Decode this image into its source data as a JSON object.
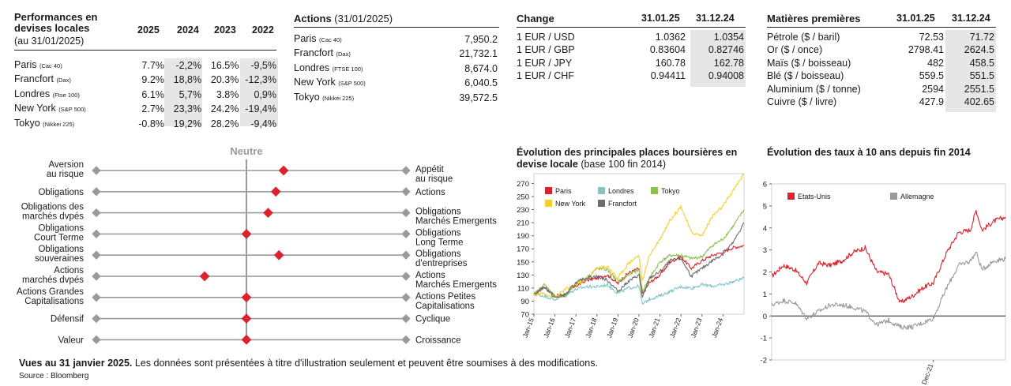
{
  "performance": {
    "title": "Performances en devises locales",
    "subtitle": "(au 31/01/2025)",
    "years": [
      "2025",
      "2024",
      "2023",
      "2022"
    ],
    "rows": [
      {
        "name": "Paris",
        "sub": "(Cac 40)",
        "v": [
          "7.7%",
          "-2,2%",
          "16.5%",
          "-9,5%"
        ]
      },
      {
        "name": "Francfort",
        "sub": "(Dax)",
        "v": [
          "9.2%",
          "18,8%",
          "20.3%",
          "-12,3%"
        ]
      },
      {
        "name": "Londres",
        "sub": "(Ftse 100)",
        "v": [
          "6.1%",
          "5,7%",
          "3.8%",
          "0,9%"
        ]
      },
      {
        "name": "New York",
        "sub": "(S&P 500)",
        "v": [
          "2.7%",
          "23,3%",
          "24.2%",
          "-19,4%"
        ]
      },
      {
        "name": "Tokyo",
        "sub": "(Nikkei 225)",
        "v": [
          "-0.8%",
          "19,2%",
          "28.2%",
          "-9,4%"
        ]
      }
    ]
  },
  "actions": {
    "title": "Actions",
    "date": "(31/01/2025)",
    "rows": [
      {
        "name": "Paris",
        "sub": "(Cac 40)",
        "v": "7,950.2"
      },
      {
        "name": "Francfort",
        "sub": "(Dax)",
        "v": "21,732.1"
      },
      {
        "name": "Londres",
        "sub": "(FTSE 100)",
        "v": "8,674.0"
      },
      {
        "name": "New York",
        "sub": "(S&P 500)",
        "v": "6,040.5"
      },
      {
        "name": "Tokyo",
        "sub": "(Nikkei 225)",
        "v": "39,572.5"
      }
    ]
  },
  "change": {
    "title": "Change",
    "cols": [
      "31.01.25",
      "31.12.24"
    ],
    "rows": [
      {
        "name": "1 EUR / USD",
        "v": [
          "1.0362",
          "1.0354"
        ]
      },
      {
        "name": "1 EUR / GBP",
        "v": [
          "0.83604",
          "0.82746"
        ]
      },
      {
        "name": "1 EUR / JPY",
        "v": [
          "160.78",
          "162.78"
        ]
      },
      {
        "name": "1 EUR / CHF",
        "v": [
          "0.94411",
          "0.94008"
        ]
      }
    ]
  },
  "commodities": {
    "title": "Matières premières",
    "cols": [
      "31.01.25",
      "31.12.24"
    ],
    "rows": [
      {
        "name": "Pétrole ($ / baril)",
        "v": [
          "72.53",
          "71.72"
        ]
      },
      {
        "name": "Or ($ / once)",
        "v": [
          "2798.41",
          "2624.5"
        ]
      },
      {
        "name": "Maïs ($ / boisseau)",
        "v": [
          "482",
          "458.5"
        ]
      },
      {
        "name": "Blé ($ / boisseau)",
        "v": [
          "559.5",
          "551.5"
        ]
      },
      {
        "name": "Aluminium ($ / tonne)",
        "v": [
          "2594",
          "2551.5"
        ]
      },
      {
        "name": "Cuivre ($ / livre)",
        "v": [
          "427.9",
          "402.65"
        ]
      }
    ]
  },
  "views": {
    "neutral_label": "Neutre",
    "rows": [
      {
        "left": [
          "Aversion",
          "au risque"
        ],
        "right": [
          "Appétit",
          "au risque"
        ],
        "pos": 0.24
      },
      {
        "left": [
          "Obligations"
        ],
        "right": [
          "Actions"
        ],
        "pos": 0.19
      },
      {
        "left": [
          "Obligations des",
          "marchés dvpés"
        ],
        "right": [
          "Obligations",
          "Marchés Emergents"
        ],
        "pos": 0.14
      },
      {
        "left": [
          "Obligations",
          "Court Terme"
        ],
        "right": [
          "Obligations",
          "Long Terme"
        ],
        "pos": 0.0
      },
      {
        "left": [
          "Obligations",
          "souveraines"
        ],
        "right": [
          "Obligations",
          "d'entreprises"
        ],
        "pos": 0.21
      },
      {
        "left": [
          "Actions",
          "marchés dvpés"
        ],
        "right": [
          "Actions",
          "Marchés Emergents"
        ],
        "pos": -0.27
      },
      {
        "left": [
          "Actions Grandes",
          "Capitalisations"
        ],
        "right": [
          "Actions Petites",
          "Capitalisations"
        ],
        "pos": 0.0
      },
      {
        "left": [
          "Défensif"
        ],
        "right": [
          "Cyclique"
        ],
        "pos": 0.0
      },
      {
        "left": [
          "Valeur"
        ],
        "right": [
          "Croissance"
        ],
        "pos": 0.0
      }
    ],
    "colors": {
      "marker": "#d9232e",
      "line": "#9a9a9a",
      "end": "#9a9a9a"
    }
  },
  "footer": {
    "bold": "Vues au 31 janvier 2025.",
    "text": "Les données sont présentées à titre d'illustration seulement et peuvent être soumises à des modifications.",
    "source": "Source : Bloomberg"
  },
  "chart_data": [
    {
      "type": "line",
      "title": "Évolution des principales places boursières en devise locale",
      "subtitle": "(base 100 fin 2014)",
      "ylim": [
        70,
        285
      ],
      "yticks": [
        70,
        90,
        110,
        130,
        150,
        170,
        190,
        210,
        230,
        250,
        270
      ],
      "xticks": [
        "Jan-15",
        "Jan-16",
        "Jan-17",
        "Jan-18",
        "Jan-19",
        "Jan-20",
        "Jan-21",
        "Jan-22",
        "Jan-23",
        "Jan-24"
      ],
      "x": [
        "2015-01",
        "2015-07",
        "2016-01",
        "2016-07",
        "2017-01",
        "2017-07",
        "2018-01",
        "2018-07",
        "2019-01",
        "2019-07",
        "2020-01",
        "2020-03",
        "2020-07",
        "2021-01",
        "2021-07",
        "2022-01",
        "2022-07",
        "2023-01",
        "2023-07",
        "2024-01",
        "2024-07",
        "2025-01"
      ],
      "legend": "top-left",
      "grid": false,
      "series": [
        {
          "name": "Paris",
          "color": "#d9232e",
          "values": [
            100,
            112,
            98,
            100,
            113,
            122,
            125,
            130,
            117,
            133,
            140,
            100,
            118,
            130,
            150,
            158,
            140,
            152,
            160,
            165,
            172,
            175
          ]
        },
        {
          "name": "Londres",
          "color": "#7fc6c4",
          "values": [
            100,
            98,
            92,
            100,
            108,
            112,
            112,
            115,
            102,
            110,
            113,
            85,
            93,
            98,
            105,
            112,
            110,
            115,
            113,
            115,
            120,
            125
          ]
        },
        {
          "name": "Tokyo",
          "color": "#8cc14e",
          "values": [
            100,
            115,
            98,
            96,
            118,
            125,
            140,
            138,
            120,
            130,
            138,
            105,
            125,
            150,
            160,
            160,
            155,
            158,
            175,
            185,
            205,
            230
          ]
        },
        {
          "name": "New York",
          "color": "#f4d12a",
          "values": [
            100,
            102,
            95,
            108,
            115,
            124,
            140,
            143,
            125,
            148,
            160,
            120,
            160,
            185,
            215,
            235,
            195,
            190,
            220,
            235,
            260,
            285
          ]
        },
        {
          "name": "Francfort",
          "color": "#6d6d6d",
          "values": [
            100,
            112,
            95,
            100,
            118,
            126,
            128,
            122,
            105,
            120,
            130,
            95,
            125,
            135,
            152,
            155,
            128,
            140,
            152,
            162,
            180,
            210
          ]
        }
      ]
    },
    {
      "type": "line",
      "title": "Évolution des taux à 10 ans depuis fin 2014",
      "ylim": [
        -2,
        6
      ],
      "yticks": [
        -2,
        -1,
        0,
        1,
        2,
        3,
        4,
        5,
        6
      ],
      "xticks": [
        "Dec-21"
      ],
      "x": [
        "2015-01",
        "2015-07",
        "2016-01",
        "2016-07",
        "2017-01",
        "2017-07",
        "2018-01",
        "2018-07",
        "2019-01",
        "2019-07",
        "2020-01",
        "2020-07",
        "2021-01",
        "2021-07",
        "2021-12",
        "2022-07",
        "2023-01",
        "2023-07",
        "2023-10",
        "2024-01",
        "2024-07",
        "2025-01"
      ],
      "legend": "top-left",
      "grid": false,
      "series": [
        {
          "name": "Etats-Unis",
          "color": "#d9232e",
          "values": [
            1.8,
            2.3,
            2.1,
            1.5,
            2.4,
            2.3,
            2.5,
            2.9,
            3.1,
            2.0,
            1.9,
            0.6,
            0.9,
            1.3,
            1.5,
            2.9,
            3.8,
            3.9,
            4.8,
            3.9,
            4.3,
            4.5
          ]
        },
        {
          "name": "Allemagne",
          "color": "#9a9a9a",
          "values": [
            0.5,
            0.7,
            0.6,
            -0.1,
            0.2,
            0.5,
            0.5,
            0.4,
            0.2,
            -0.4,
            -0.2,
            -0.5,
            -0.5,
            -0.3,
            -0.1,
            1.3,
            2.3,
            2.5,
            2.9,
            2.1,
            2.5,
            2.6
          ]
        }
      ]
    }
  ]
}
